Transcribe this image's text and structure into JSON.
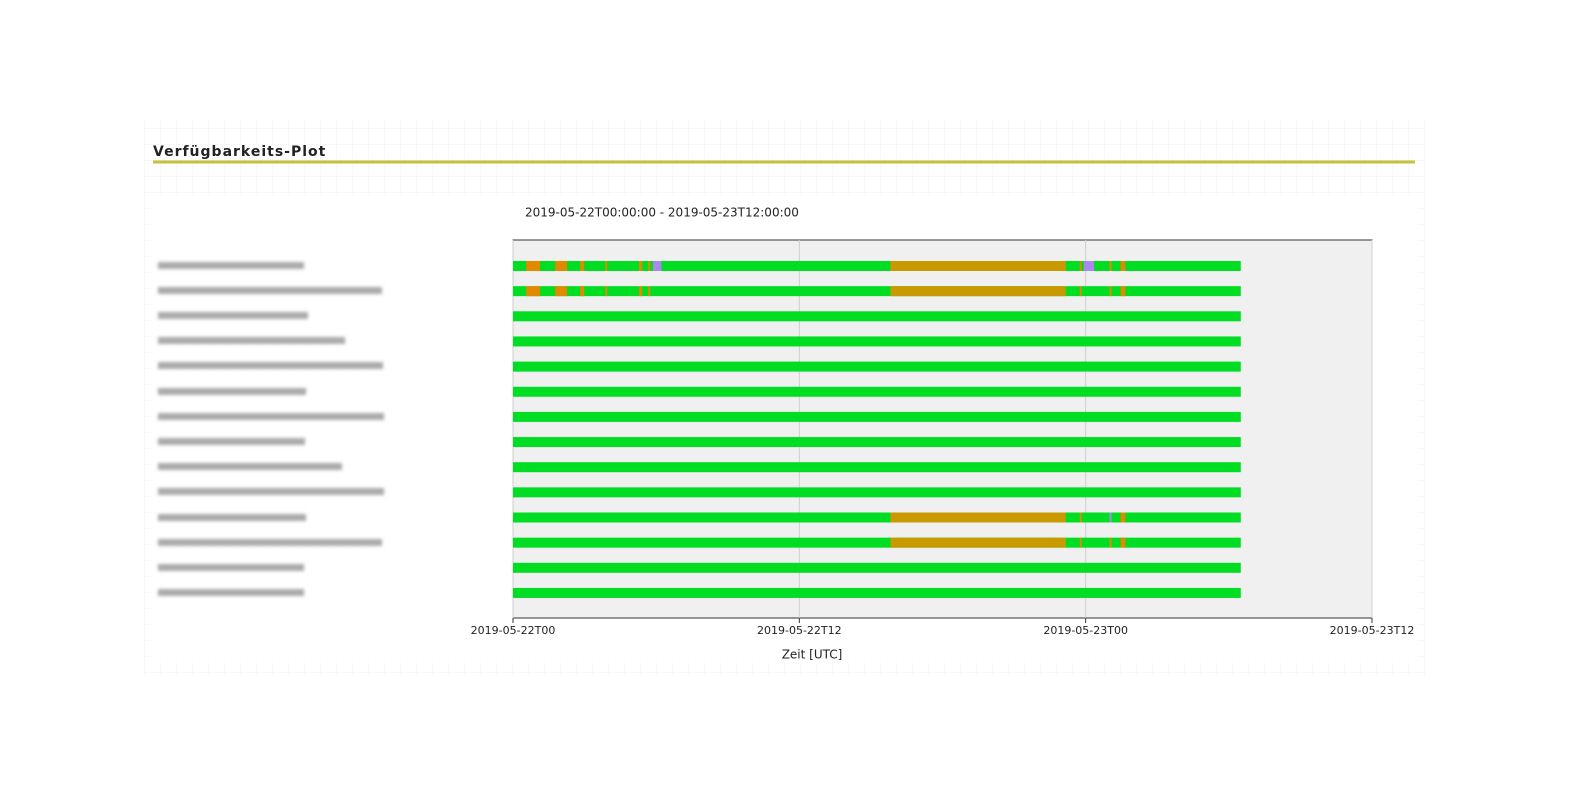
{
  "header": {
    "title": "Verfügbarkeits-Plot"
  },
  "chart_data": {
    "type": "timeline",
    "subtitle": "2019-05-22T00:00:00 - 2019-05-23T12:00:00",
    "x_label": "Zeit [UTC]",
    "xlim": [
      "2019-05-22T00",
      "2019-05-23T12"
    ],
    "xticks": [
      "2019-05-22T00",
      "2019-05-22T12",
      "2019-05-23T00",
      "2019-05-23T12"
    ],
    "grid": true,
    "categories": [
      null,
      null,
      null,
      null,
      null,
      null,
      null,
      null,
      null,
      null,
      null,
      null,
      null,
      null
    ],
    "rows": [
      [
        {
          "start": "2019-05-22T00:00",
          "end": "2019-05-23T06:30",
          "color": "#00dd22"
        },
        {
          "start": "2019-05-22T00:33",
          "end": "2019-05-22T01:08",
          "color": "#e08a00"
        },
        {
          "start": "2019-05-22T01:46",
          "end": "2019-05-22T02:16",
          "color": "#e08a00"
        },
        {
          "start": "2019-05-22T02:49",
          "end": "2019-05-22T02:59",
          "color": "#e08a00"
        },
        {
          "start": "2019-05-22T03:52",
          "end": "2019-05-22T03:57",
          "color": "#e08a00"
        },
        {
          "start": "2019-05-22T05:17",
          "end": "2019-05-22T05:25",
          "color": "#e08a00"
        },
        {
          "start": "2019-05-22T05:40",
          "end": "2019-05-22T05:45",
          "color": "#e08a00"
        },
        {
          "start": "2019-05-22T05:52",
          "end": "2019-05-22T06:13",
          "color": "#aa88ee"
        },
        {
          "start": "2019-05-22T15:49",
          "end": "2019-05-22T23:10",
          "color": "#c89a00"
        },
        {
          "start": "2019-05-22T23:45",
          "end": "2019-05-22T23:50",
          "color": "#e08a00"
        },
        {
          "start": "2019-05-22T23:55",
          "end": "2019-05-23T00:21",
          "color": "#aa88ee"
        },
        {
          "start": "2019-05-23T01:00",
          "end": "2019-05-23T01:05",
          "color": "#e08a00"
        },
        {
          "start": "2019-05-23T01:28",
          "end": "2019-05-23T01:40",
          "color": "#e08a00"
        }
      ],
      [
        {
          "start": "2019-05-22T00:00",
          "end": "2019-05-23T06:30",
          "color": "#00dd22"
        },
        {
          "start": "2019-05-22T00:33",
          "end": "2019-05-22T01:08",
          "color": "#e08a00"
        },
        {
          "start": "2019-05-22T01:46",
          "end": "2019-05-22T02:16",
          "color": "#e08a00"
        },
        {
          "start": "2019-05-22T02:49",
          "end": "2019-05-22T02:59",
          "color": "#e08a00"
        },
        {
          "start": "2019-05-22T03:52",
          "end": "2019-05-22T03:57",
          "color": "#e08a00"
        },
        {
          "start": "2019-05-22T05:17",
          "end": "2019-05-22T05:25",
          "color": "#e08a00"
        },
        {
          "start": "2019-05-22T05:40",
          "end": "2019-05-22T05:45",
          "color": "#e08a00"
        },
        {
          "start": "2019-05-22T15:49",
          "end": "2019-05-22T23:10",
          "color": "#c89a00"
        },
        {
          "start": "2019-05-22T23:45",
          "end": "2019-05-22T23:50",
          "color": "#e08a00"
        },
        {
          "start": "2019-05-23T01:00",
          "end": "2019-05-23T01:05",
          "color": "#e08a00"
        },
        {
          "start": "2019-05-23T01:28",
          "end": "2019-05-23T01:40",
          "color": "#e08a00"
        }
      ],
      [
        {
          "start": "2019-05-22T00:00",
          "end": "2019-05-23T06:30",
          "color": "#00dd22"
        }
      ],
      [
        {
          "start": "2019-05-22T00:00",
          "end": "2019-05-23T06:30",
          "color": "#00dd22"
        }
      ],
      [
        {
          "start": "2019-05-22T00:00",
          "end": "2019-05-23T06:30",
          "color": "#00dd22"
        }
      ],
      [
        {
          "start": "2019-05-22T00:00",
          "end": "2019-05-23T06:30",
          "color": "#00dd22"
        }
      ],
      [
        {
          "start": "2019-05-22T00:00",
          "end": "2019-05-23T06:30",
          "color": "#00dd22"
        }
      ],
      [
        {
          "start": "2019-05-22T00:00",
          "end": "2019-05-23T06:30",
          "color": "#00dd22"
        }
      ],
      [
        {
          "start": "2019-05-22T00:00",
          "end": "2019-05-23T06:30",
          "color": "#00dd22"
        }
      ],
      [
        {
          "start": "2019-05-22T00:00",
          "end": "2019-05-23T06:30",
          "color": "#00dd22"
        }
      ],
      [
        {
          "start": "2019-05-22T00:00",
          "end": "2019-05-23T06:30",
          "color": "#00dd22"
        },
        {
          "start": "2019-05-22T15:49",
          "end": "2019-05-22T23:10",
          "color": "#c89a00"
        },
        {
          "start": "2019-05-22T23:45",
          "end": "2019-05-22T23:50",
          "color": "#e08a00"
        },
        {
          "start": "2019-05-23T01:00",
          "end": "2019-05-23T01:05",
          "color": "#aa88ee"
        },
        {
          "start": "2019-05-23T01:28",
          "end": "2019-05-23T01:40",
          "color": "#e08a00"
        }
      ],
      [
        {
          "start": "2019-05-22T00:00",
          "end": "2019-05-23T06:30",
          "color": "#00dd22"
        },
        {
          "start": "2019-05-22T15:49",
          "end": "2019-05-22T23:10",
          "color": "#c89a00"
        },
        {
          "start": "2019-05-22T23:45",
          "end": "2019-05-22T23:50",
          "color": "#e08a00"
        },
        {
          "start": "2019-05-23T01:00",
          "end": "2019-05-23T01:05",
          "color": "#e08a00"
        },
        {
          "start": "2019-05-23T01:28",
          "end": "2019-05-23T01:40",
          "color": "#e08a00"
        }
      ],
      [
        {
          "start": "2019-05-22T00:00",
          "end": "2019-05-23T06:30",
          "color": "#00dd22"
        }
      ],
      [
        {
          "start": "2019-05-22T00:00",
          "end": "2019-05-23T06:30",
          "color": "#00dd22"
        }
      ]
    ]
  }
}
